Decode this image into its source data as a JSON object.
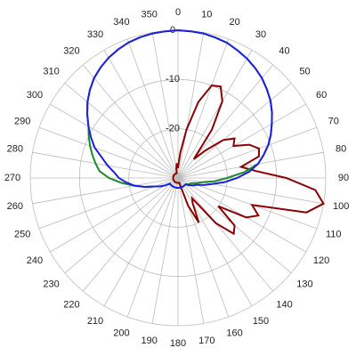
{
  "chart_data": {
    "type": "polar",
    "theta": [
      0,
      5,
      10,
      15,
      20,
      25,
      30,
      35,
      40,
      45,
      50,
      55,
      60,
      65,
      70,
      75,
      80,
      85,
      90,
      95,
      100,
      105,
      110,
      115,
      120,
      125,
      130,
      135,
      140,
      145,
      150,
      155,
      160,
      165,
      170,
      175,
      180,
      185,
      190,
      195,
      200,
      205,
      210,
      215,
      220,
      225,
      230,
      235,
      240,
      245,
      250,
      255,
      260,
      265,
      270,
      275,
      280,
      285,
      290,
      295,
      300,
      305,
      310,
      315,
      320,
      325,
      330,
      335,
      340,
      345,
      350,
      355
    ],
    "thetaticks": [
      0,
      10,
      20,
      30,
      40,
      50,
      60,
      70,
      80,
      90,
      100,
      110,
      120,
      130,
      140,
      150,
      160,
      170,
      180,
      190,
      200,
      210,
      220,
      230,
      240,
      250,
      260,
      270,
      280,
      290,
      300,
      310,
      320,
      330,
      340,
      350
    ],
    "rlim": [
      -30,
      0
    ],
    "rticks": [
      -20,
      -10,
      0
    ],
    "grid": true,
    "series": [
      {
        "color": "#8b0000",
        "values": [
          -28,
          -25,
          -20,
          -14,
          -10,
          -9.5,
          -12,
          -18,
          -25,
          -22,
          -18,
          -16,
          -17,
          -14,
          -12.5,
          -13,
          -17,
          -14,
          -8,
          -2,
          0,
          -3,
          -14,
          -12,
          -14,
          -20,
          -15,
          -14,
          -18,
          -25,
          -24,
          -20,
          -24,
          -29,
          -29,
          -29,
          -29,
          -29,
          -29,
          -29,
          -29,
          -29,
          -29,
          -29,
          -29,
          -29,
          -29,
          -29,
          -29,
          -29,
          -29,
          -29,
          -29,
          -29,
          -29,
          -29,
          -29,
          -29,
          -29,
          -29,
          -29,
          -29,
          -29,
          -29,
          -29,
          -29,
          -29,
          -29,
          -29,
          -29,
          -28,
          -27
        ]
      },
      {
        "color": "#1a8a2a",
        "values": [
          0,
          -0.1,
          -0.2,
          -0.5,
          -0.8,
          -1.4,
          -2,
          -2.7,
          -3.5,
          -4.5,
          -5.5,
          -6.7,
          -8,
          -9.2,
          -10.5,
          -12,
          -13.5,
          -16.5,
          -20,
          -22.5,
          -25,
          -26,
          -27,
          -27.2,
          -27.5,
          -27.8,
          -28,
          -28,
          -28,
          -28,
          -28,
          -28,
          -28,
          -28,
          -28,
          -28,
          -28,
          -28,
          -28,
          -28,
          -28,
          -28,
          -28,
          -28,
          -28,
          -28,
          -28,
          -28,
          -27,
          -26,
          -25,
          -23,
          -21,
          -18.5,
          -16,
          -14,
          -13,
          -12,
          -11,
          -10,
          -9,
          -7.5,
          -6,
          -4.7,
          -3.5,
          -2.6,
          -1.8,
          -1.2,
          -0.7,
          -0.4,
          -0.2,
          -0.1
        ]
      },
      {
        "color": "#1f1fe0",
        "values": [
          0,
          -0.1,
          -0.2,
          -0.5,
          -0.8,
          -1.4,
          -2,
          -2.7,
          -3.5,
          -4.5,
          -5.5,
          -6.7,
          -8,
          -9.2,
          -10.5,
          -12,
          -13.5,
          -15.5,
          -18,
          -20.5,
          -23,
          -24.5,
          -26,
          -26.5,
          -27,
          -27.5,
          -28,
          -28,
          -28,
          -28,
          -28,
          -28,
          -28,
          -28,
          -28,
          -28,
          -28,
          -28,
          -28,
          -28,
          -28,
          -28,
          -28,
          -28,
          -28,
          -28,
          -28,
          -28,
          -27,
          -26,
          -25,
          -23,
          -21,
          -19.5,
          -18,
          -17,
          -15.5,
          -14,
          -12,
          -10.5,
          -9,
          -7.5,
          -6,
          -4.7,
          -3.5,
          -2.6,
          -1.8,
          -1.2,
          -0.7,
          -0.4,
          -0.2,
          -0.1
        ]
      }
    ]
  }
}
